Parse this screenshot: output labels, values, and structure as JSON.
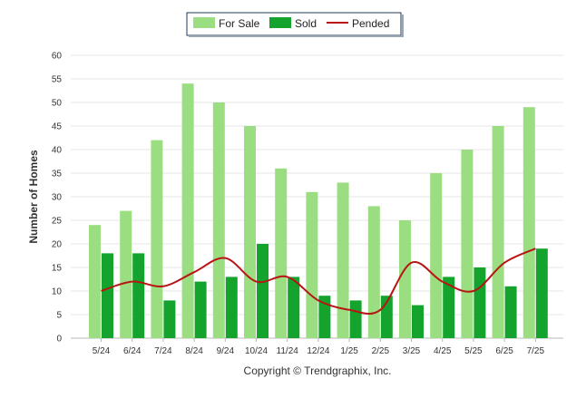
{
  "chart_data": {
    "type": "bar",
    "categories": [
      "5/24",
      "6/24",
      "7/24",
      "8/24",
      "9/24",
      "10/24",
      "11/24",
      "12/24",
      "1/25",
      "2/25",
      "3/25",
      "4/25",
      "5/25",
      "6/25",
      "7/25"
    ],
    "series": [
      {
        "name": "For Sale",
        "kind": "bar",
        "color": "#9ade81",
        "values": [
          24,
          27,
          42,
          54,
          50,
          45,
          36,
          31,
          33,
          28,
          25,
          35,
          40,
          45,
          49
        ]
      },
      {
        "name": "Sold",
        "kind": "bar",
        "color": "#14a32d",
        "values": [
          18,
          18,
          8,
          12,
          13,
          20,
          13,
          9,
          8,
          9,
          7,
          13,
          15,
          11,
          19
        ]
      },
      {
        "name": "Pended",
        "kind": "line",
        "color": "#b81414",
        "values": [
          10,
          12,
          11,
          14,
          17,
          12,
          13,
          8,
          6,
          6,
          16,
          12,
          10,
          16,
          19
        ]
      }
    ],
    "ylabel": "Number of Homes",
    "xlabel": "",
    "ylim": [
      0,
      60
    ],
    "yticks": [
      0,
      5,
      10,
      15,
      20,
      25,
      30,
      35,
      40,
      45,
      50,
      55,
      60
    ],
    "grid": true,
    "legend_position": "top-center",
    "credit": "Copyright © Trendgraphix, Inc."
  }
}
